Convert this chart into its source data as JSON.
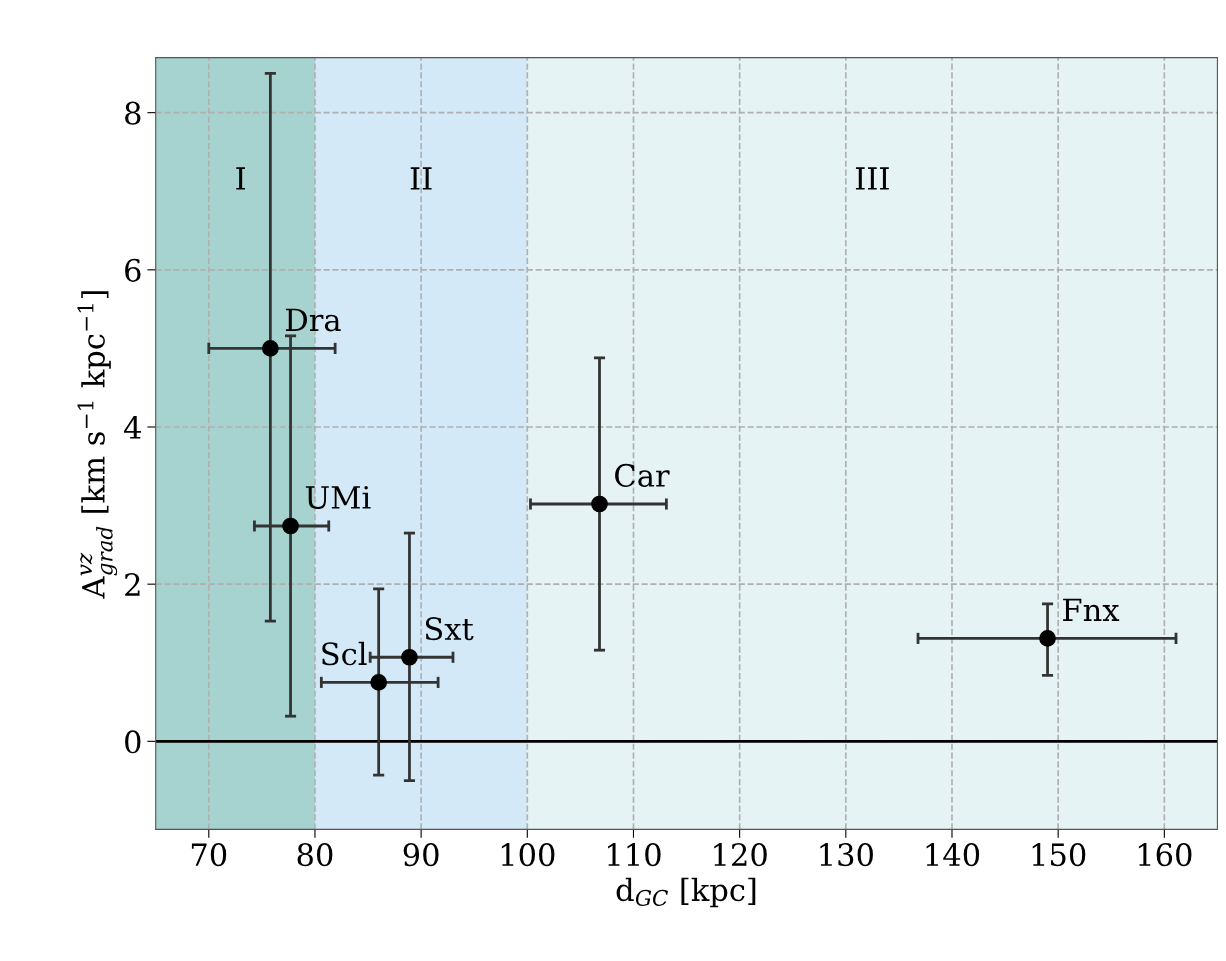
{
  "chart_data": {
    "type": "scatter",
    "xlabel": "d$_{GC}$ [kpc]",
    "ylabel": "A$^{vz}$$_{grad}$ [km s$^{−1}$ kpc$^{−1}$]",
    "xlim": [
      65,
      165
    ],
    "ylim": [
      -1.12,
      8.7
    ],
    "xticks": [
      70,
      80,
      90,
      100,
      110,
      120,
      130,
      140,
      150,
      160
    ],
    "yticks": [
      0,
      2,
      4,
      6,
      8
    ],
    "grid": true,
    "marker": "circle",
    "series": [
      {
        "color": "#000000",
        "x": [
          75.8,
          77.7,
          86.0,
          88.9,
          106.8,
          149.0
        ],
        "values": [
          5.0,
          2.74,
          0.75,
          1.07,
          3.02,
          1.31
        ],
        "errors": [
          [
            1.53,
            8.5
          ],
          [
            0.32,
            5.16
          ],
          [
            -0.43,
            1.94
          ],
          [
            -0.5,
            2.65
          ],
          [
            1.16,
            4.88
          ],
          [
            0.84,
            1.75
          ]
        ],
        "xerrors": [
          [
            70.0,
            81.9
          ],
          [
            74.3,
            81.3
          ],
          [
            80.6,
            91.6
          ],
          [
            85.2,
            93.0
          ],
          [
            100.3,
            113.1
          ],
          [
            136.8,
            161.1
          ]
        ]
      }
    ],
    "annotations": [
      {
        "text": "Dra",
        "x": 75.8,
        "y": 5.0
      },
      {
        "text": "UMi",
        "x": 77.7,
        "y": 2.74
      },
      {
        "text": "Scl",
        "x": 86.0,
        "y": 0.75
      },
      {
        "text": "Sxt",
        "x": 88.9,
        "y": 1.07
      },
      {
        "text": "Car",
        "x": 106.8,
        "y": 3.02
      },
      {
        "text": "Fnx",
        "x": 149.0,
        "y": 1.31
      }
    ],
    "bands": [
      {
        "axis": "x",
        "from": 65,
        "to": 80,
        "label": "I",
        "color": "#a6d3cf"
      },
      {
        "axis": "x",
        "from": 80,
        "to": 100,
        "label": "II",
        "color": "#d4e9f8"
      },
      {
        "axis": "x",
        "from": 100,
        "to": 165,
        "label": "III",
        "color": "#e6f3f5"
      }
    ],
    "ref_lines": [
      {
        "axis": "y",
        "value": 0,
        "color": "#000000",
        "line_style": "solid"
      }
    ]
  }
}
